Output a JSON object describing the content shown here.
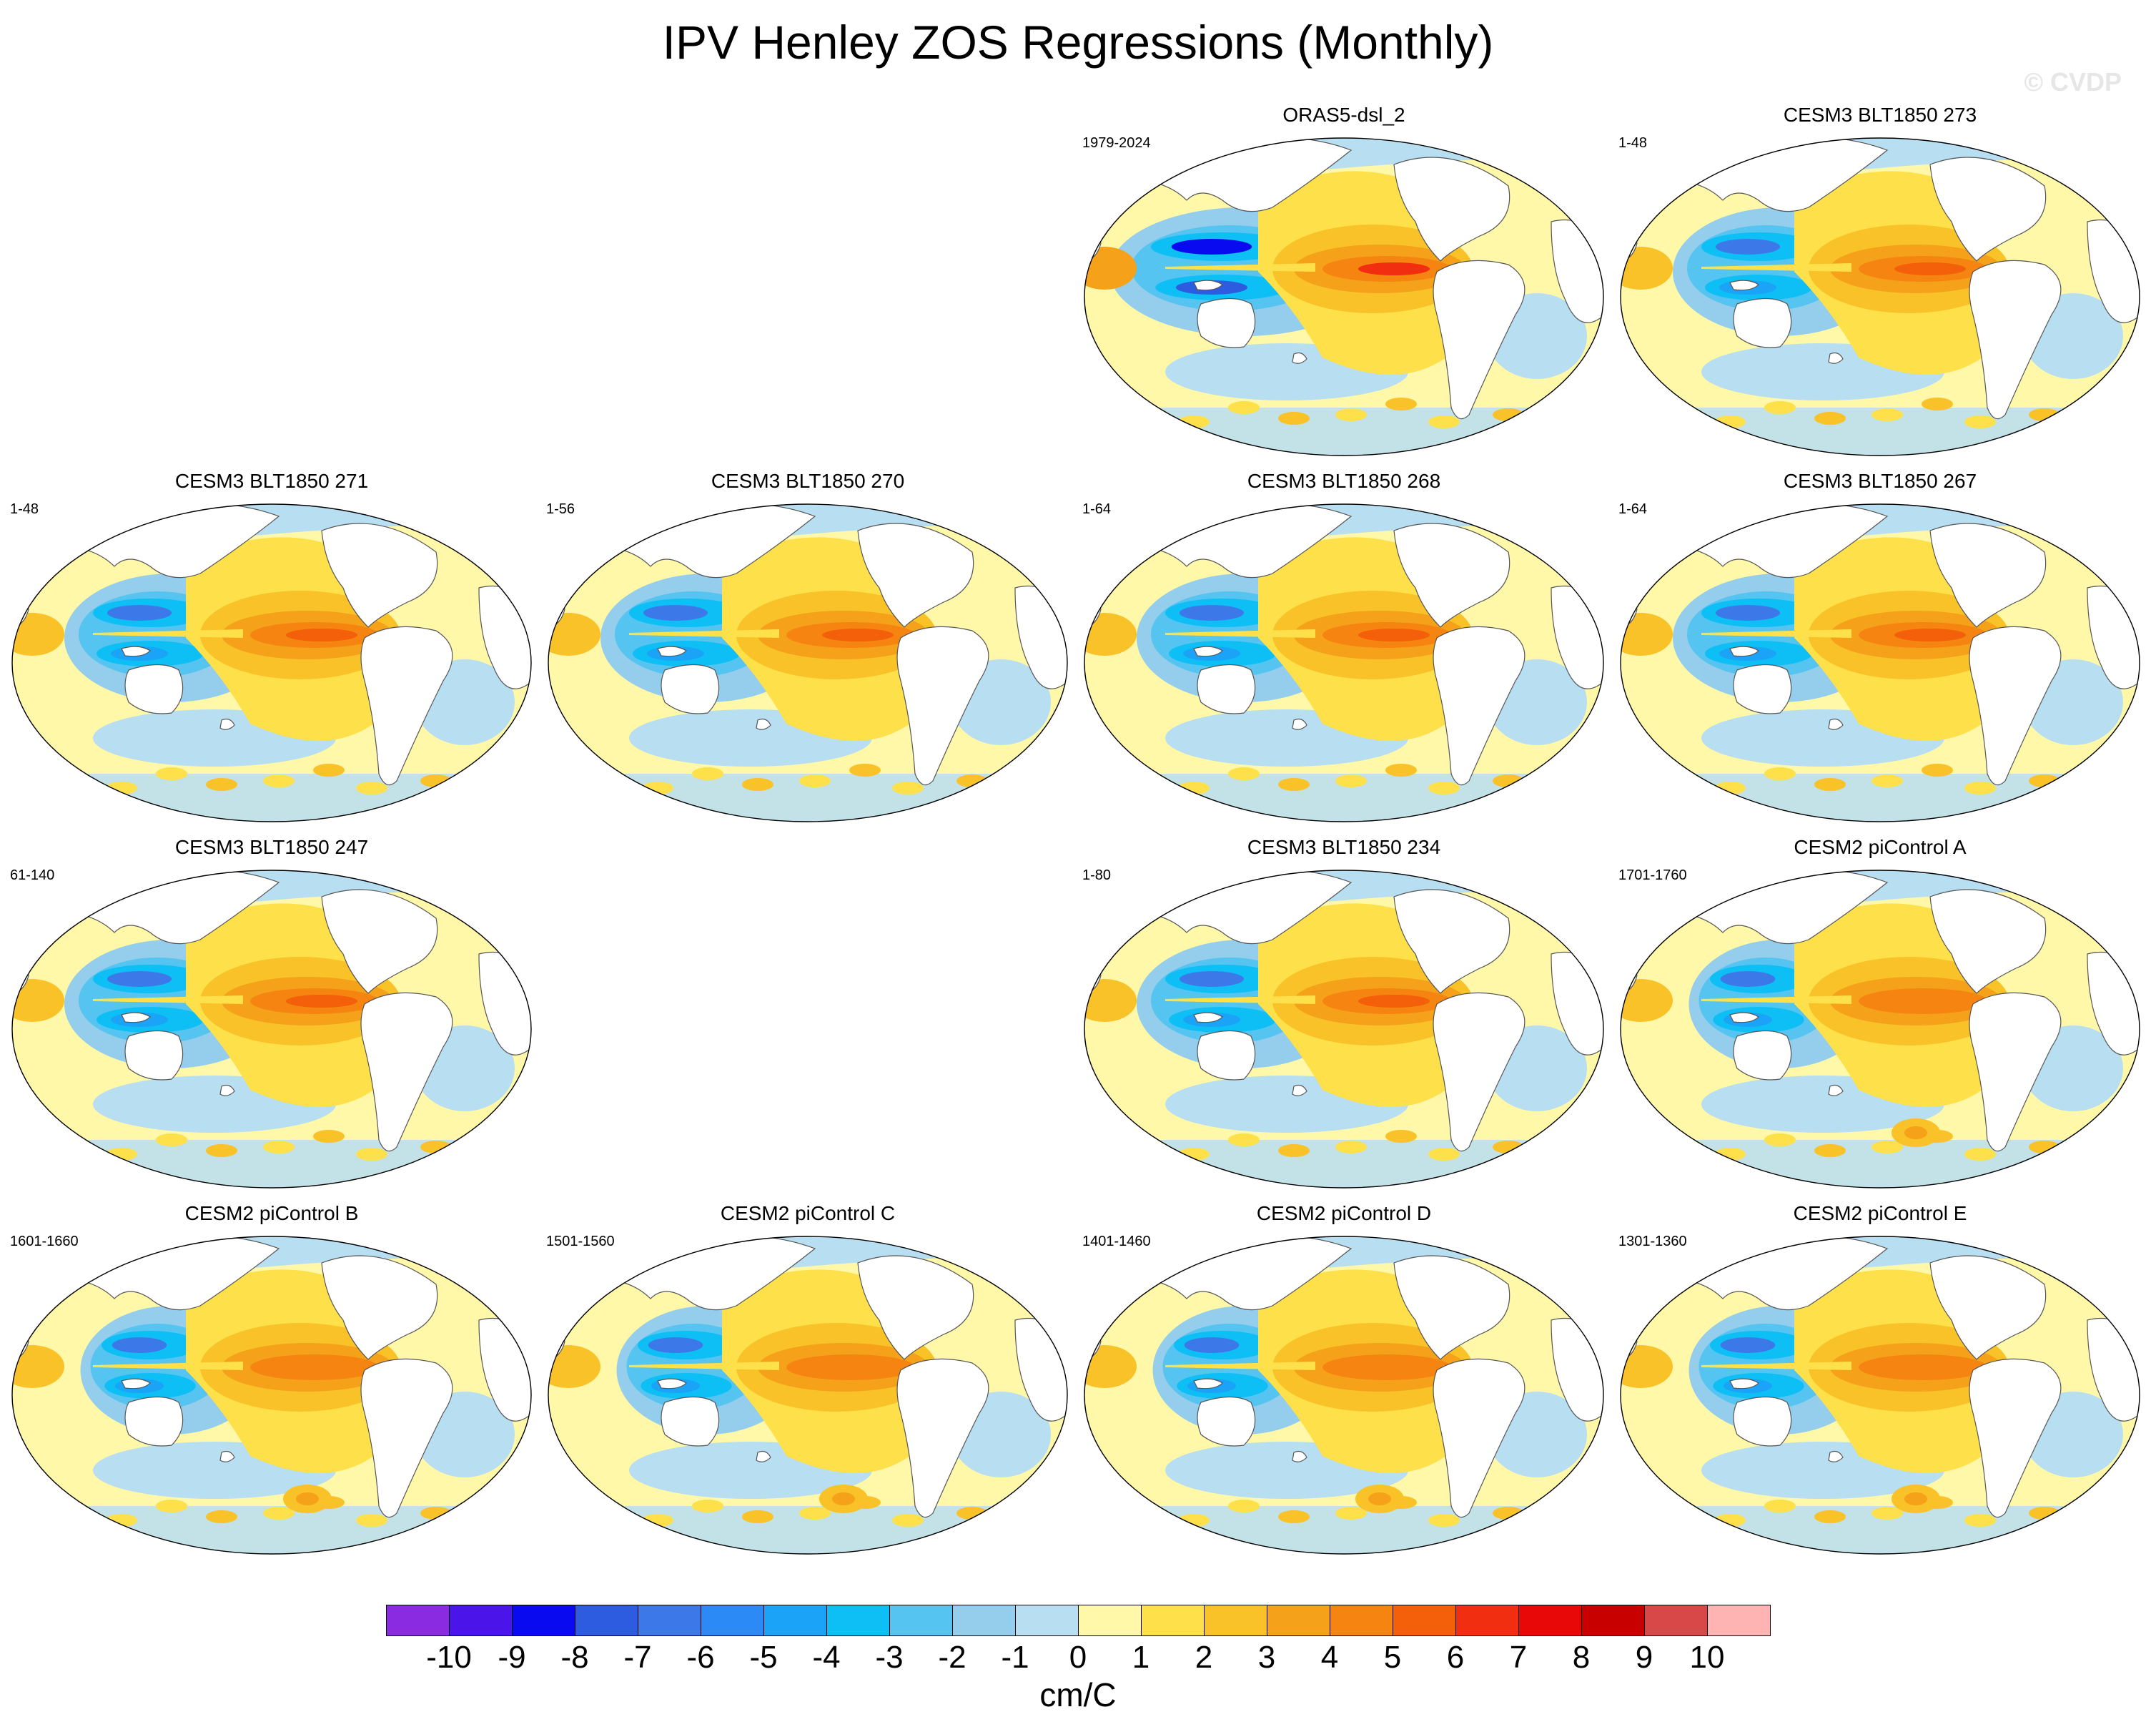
{
  "figure": {
    "title": "IPV Henley ZOS Regressions (Monthly)",
    "watermark": "© CVDP"
  },
  "panels": [
    {
      "id": "oras5",
      "title": "ORAS5-dsl_2",
      "years": "1979-2024",
      "row": 0,
      "col": 2,
      "style": "obs"
    },
    {
      "id": "b273",
      "title": "CESM3 BLT1850 273",
      "years": "1-48",
      "row": 0,
      "col": 3,
      "style": "cesm3"
    },
    {
      "id": "b271",
      "title": "CESM3 BLT1850 271",
      "years": "1-48",
      "row": 1,
      "col": 0,
      "style": "cesm3"
    },
    {
      "id": "b270",
      "title": "CESM3 BLT1850 270",
      "years": "1-56",
      "row": 1,
      "col": 1,
      "style": "cesm3"
    },
    {
      "id": "b268",
      "title": "CESM3 BLT1850 268",
      "years": "1-64",
      "row": 1,
      "col": 2,
      "style": "cesm3"
    },
    {
      "id": "b267",
      "title": "CESM3 BLT1850 267",
      "years": "1-64",
      "row": 1,
      "col": 3,
      "style": "cesm3"
    },
    {
      "id": "b247",
      "title": "CESM3 BLT1850 247",
      "years": "61-140",
      "row": 2,
      "col": 0,
      "style": "cesm3"
    },
    {
      "id": "b234",
      "title": "CESM3 BLT1850 234",
      "years": "1-80",
      "row": 2,
      "col": 2,
      "style": "cesm3"
    },
    {
      "id": "pica",
      "title": "CESM2 piControl A",
      "years": "1701-1760",
      "row": 2,
      "col": 3,
      "style": "cesm2"
    },
    {
      "id": "picb",
      "title": "CESM2 piControl B",
      "years": "1601-1660",
      "row": 3,
      "col": 0,
      "style": "cesm2"
    },
    {
      "id": "picc",
      "title": "CESM2 piControl C",
      "years": "1501-1560",
      "row": 3,
      "col": 1,
      "style": "cesm2"
    },
    {
      "id": "picd",
      "title": "CESM2 piControl D",
      "years": "1401-1460",
      "row": 3,
      "col": 2,
      "style": "cesm2"
    },
    {
      "id": "pice",
      "title": "CESM2 piControl E",
      "years": "1301-1360",
      "row": 3,
      "col": 3,
      "style": "cesm2"
    }
  ],
  "colorbar": {
    "unit": "cm/C",
    "labels": [
      "-10",
      "-9",
      "-8",
      "-7",
      "-6",
      "-5",
      "-4",
      "-3",
      "-2",
      "-1",
      "0",
      "1",
      "2",
      "3",
      "4",
      "5",
      "6",
      "7",
      "8",
      "9",
      "10"
    ],
    "colors": [
      "#8a2be2",
      "#4b14e8",
      "#0a0af0",
      "#2e5ce0",
      "#3d78e8",
      "#2b8af5",
      "#1aa3f7",
      "#0dbff5",
      "#55c4f0",
      "#95cdec",
      "#b8def2",
      "#fff8a8",
      "#fde04a",
      "#f8c228",
      "#f5a21a",
      "#f58510",
      "#f4600a",
      "#f22e10",
      "#e80808",
      "#c80000",
      "#d84848",
      "#ffb4b4"
    ],
    "range": [
      -11,
      11
    ]
  },
  "colors": {
    "land": "#ffffff",
    "coast": "#555555",
    "ocean_background": "#fff8a8"
  }
}
